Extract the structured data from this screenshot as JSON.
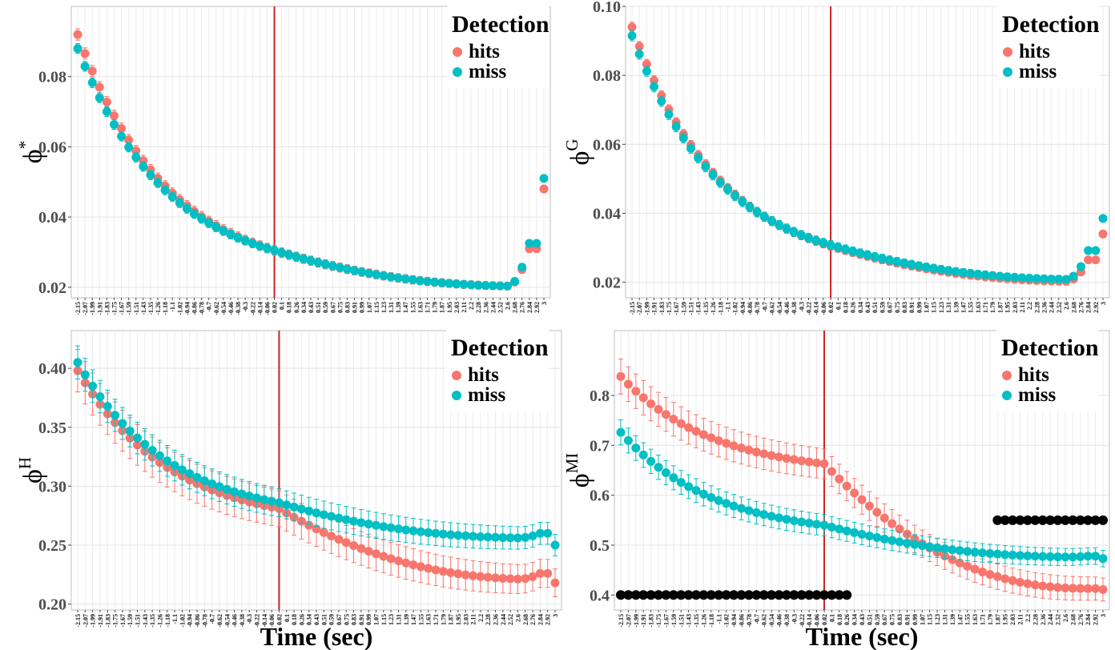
{
  "colors": {
    "hits": "#F8766D",
    "miss": "#00BFC4",
    "marker": "#000000",
    "vline": "#CC2222"
  },
  "legend": {
    "title": "Detection",
    "items": [
      {
        "key": "hits",
        "label": "hits"
      },
      {
        "key": "miss",
        "label": "miss"
      }
    ]
  },
  "x_axis_title": "Time (sec)",
  "chart_data": [
    {
      "id": "phi-star",
      "type": "scatter",
      "ylabel": {
        "base": "ϕ",
        "sup": "*"
      },
      "ylim": [
        0.017,
        0.1
      ],
      "yticks": [
        "0.02",
        "0.04",
        "0.06",
        "0.08"
      ],
      "xlabel": "",
      "grid": true,
      "legend_position": "top-right",
      "event_line_x": "0.02",
      "series": [
        {
          "name": "hits",
          "start": 0.092,
          "event": 0.0305,
          "min": 0.0203,
          "end": 0.031,
          "last": 0.048,
          "err": 0.0016
        },
        {
          "name": "miss",
          "start": 0.088,
          "event": 0.0305,
          "min": 0.0203,
          "end": 0.0325,
          "last": 0.051,
          "err": 0.0014
        }
      ]
    },
    {
      "id": "phi-g",
      "type": "scatter",
      "ylabel": {
        "base": "ϕ",
        "sup": "G"
      },
      "ylim": [
        0.0155,
        0.1
      ],
      "yticks": [
        "0.02",
        "0.04",
        "0.06",
        "0.08",
        "0.10"
      ],
      "xlabel": "",
      "grid": true,
      "legend_position": "top-right",
      "event_line_x": "0.02",
      "series": [
        {
          "name": "hits",
          "start": 0.094,
          "event": 0.0305,
          "min": 0.0202,
          "end": 0.0265,
          "last": 0.034,
          "err": 0.0014
        },
        {
          "name": "miss",
          "start": 0.0915,
          "event": 0.0308,
          "min": 0.0208,
          "end": 0.0292,
          "last": 0.0385,
          "err": 0.0015
        }
      ]
    },
    {
      "id": "phi-h",
      "type": "scatter",
      "ylabel": {
        "base": "ϕ",
        "sup": "H"
      },
      "ylim": [
        0.195,
        0.432
      ],
      "yticks": [
        "0.20",
        "0.25",
        "0.30",
        "0.35",
        "0.40"
      ],
      "xlabel": "Time (sec)",
      "grid": true,
      "legend_position": "top-right",
      "event_line_x": "0.02",
      "series": [
        {
          "name": "hits",
          "start": 0.398,
          "event": 0.281,
          "min": 0.221,
          "end": 0.226,
          "last": 0.218,
          "err": 0.018
        },
        {
          "name": "miss",
          "start": 0.405,
          "event": 0.286,
          "min": 0.256,
          "end": 0.26,
          "last": 0.25,
          "err": 0.014
        }
      ]
    },
    {
      "id": "phi-mi",
      "type": "scatter",
      "ylabel": {
        "base": "ϕ",
        "sup": "MI"
      },
      "ylim": [
        0.37,
        0.93
      ],
      "yticks": [
        "0.4",
        "0.5",
        "0.6",
        "0.7",
        "0.8"
      ],
      "xlabel": "Time (sec)",
      "grid": true,
      "legend_position": "top-right",
      "event_line_x": "0.02",
      "series": [
        {
          "name": "hits",
          "start": 0.838,
          "event": 0.663,
          "min": 0.413,
          "end": 0.413,
          "last": 0.411,
          "err": 0.035
        },
        {
          "name": "miss",
          "start": 0.726,
          "event": 0.54,
          "min": 0.476,
          "end": 0.478,
          "last": 0.473,
          "err": 0.025
        }
      ],
      "significance_markers": [
        {
          "y": 0.4,
          "from": "-2.15",
          "to": "0.26"
        },
        {
          "y": 0.55,
          "from": "1.87",
          "to": "3"
        }
      ]
    }
  ],
  "x_ticks": [
    "-2.15",
    "-2.07",
    "-1.99",
    "-1.91",
    "-1.83",
    "-1.75",
    "-1.67",
    "-1.59",
    "-1.51",
    "-1.43",
    "-1.35",
    "-1.26",
    "-1.18",
    "-1.1",
    "-1.02",
    "-0.94",
    "-0.86",
    "-0.78",
    "-0.7",
    "-0.62",
    "-0.54",
    "-0.46",
    "-0.38",
    "-0.3",
    "-0.22",
    "-0.14",
    "-0.06",
    "0.02",
    "0.1",
    "0.18",
    "0.26",
    "0.34",
    "0.43",
    "0.51",
    "0.59",
    "0.67",
    "0.75",
    "0.83",
    "0.91",
    "0.99",
    "1.07",
    "1.15",
    "1.23",
    "1.31",
    "1.39",
    "1.47",
    "1.55",
    "1.63",
    "1.71",
    "1.79",
    "1.87",
    "1.95",
    "2.03",
    "2.11",
    "2.2",
    "2.28",
    "2.36",
    "2.44",
    "2.52",
    "2.6",
    "2.68",
    "2.76",
    "2.84",
    "2.92",
    "3"
  ]
}
